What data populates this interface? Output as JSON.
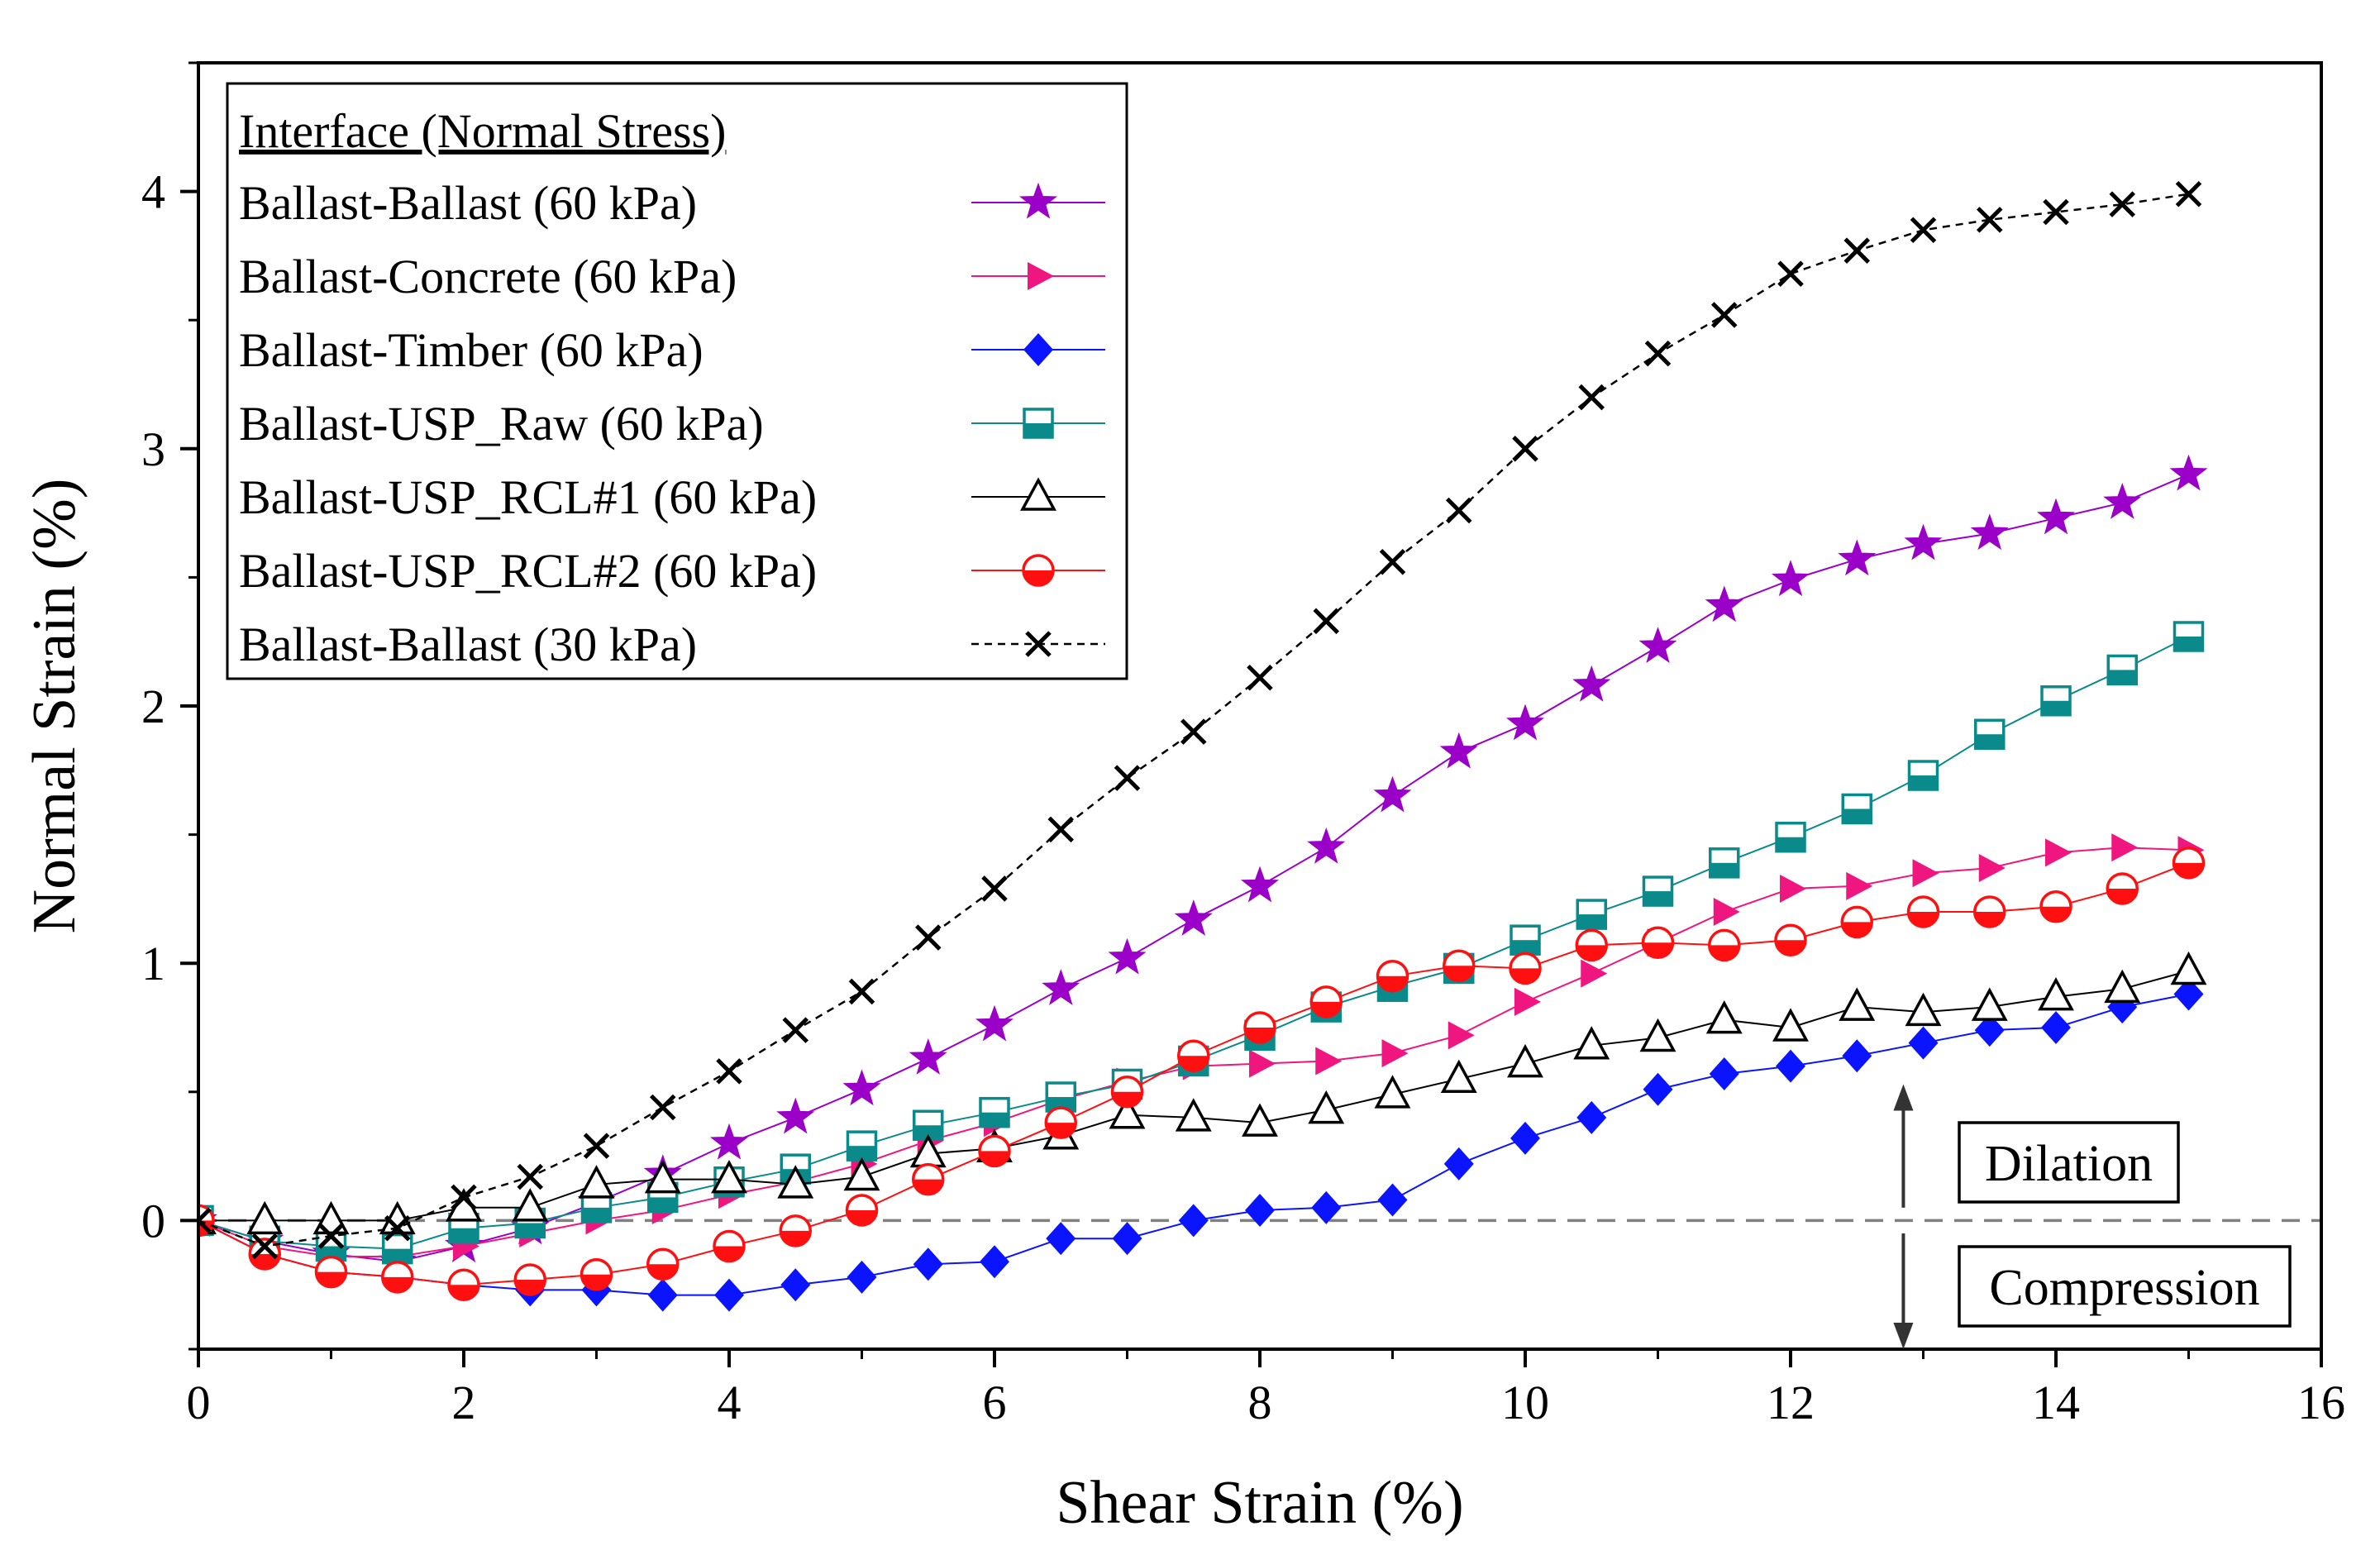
{
  "chart_data": {
    "type": "line",
    "title": "",
    "xlabel": "Shear Strain (%)",
    "ylabel": "Normal Strain (%)",
    "xlim": [
      0,
      16
    ],
    "ylim": [
      -0.5,
      4.5
    ],
    "xticks": [
      0,
      2,
      4,
      6,
      8,
      10,
      12,
      14,
      16
    ],
    "yticks": [
      0,
      1,
      2,
      3,
      4
    ],
    "x_tick_labels": [
      "0",
      "2",
      "4",
      "6",
      "8",
      "10",
      "12",
      "14",
      "16"
    ],
    "y_tick_labels": [
      "0",
      "1",
      "2",
      "3",
      "4"
    ],
    "legend_title": "Interface (Normal Stress)",
    "legend_position": "top-left",
    "x": [
      0,
      0.5,
      1,
      1.5,
      2,
      2.5,
      3,
      3.5,
      4,
      4.5,
      5,
      5.5,
      6,
      6.5,
      7,
      7.5,
      8,
      8.5,
      9,
      9.5,
      10,
      10.5,
      11,
      11.5,
      12,
      12.5,
      13,
      13.5,
      14,
      14.5,
      15
    ],
    "series": [
      {
        "name": "Ballast-Ballast (60 kPa)",
        "color": "#9b00c8",
        "marker": "star",
        "line": "solid",
        "values": [
          0,
          -0.08,
          -0.13,
          -0.16,
          -0.1,
          -0.03,
          0.07,
          0.18,
          0.3,
          0.4,
          0.51,
          0.63,
          0.76,
          0.9,
          1.02,
          1.17,
          1.3,
          1.45,
          1.65,
          1.82,
          1.93,
          2.08,
          2.23,
          2.39,
          2.49,
          2.57,
          2.63,
          2.67,
          2.73,
          2.79,
          2.9
        ]
      },
      {
        "name": "Ballast-Concrete (60 kPa)",
        "color": "#f0167f",
        "marker": "triangle-right",
        "line": "solid",
        "values": [
          0,
          -0.1,
          -0.14,
          -0.14,
          -0.1,
          -0.05,
          0,
          0.04,
          0.1,
          0.15,
          0.22,
          0.31,
          0.38,
          0.47,
          0.54,
          0.6,
          0.61,
          0.62,
          0.65,
          0.72,
          0.85,
          0.96,
          1.08,
          1.2,
          1.29,
          1.3,
          1.35,
          1.37,
          1.43,
          1.45,
          1.44
        ]
      },
      {
        "name": "Ballast-Timber (60 kPa)",
        "color": "#0a14ff",
        "marker": "diamond",
        "line": "solid",
        "values": [
          0,
          -0.13,
          -0.2,
          -0.22,
          -0.25,
          -0.27,
          -0.27,
          -0.29,
          -0.29,
          -0.25,
          -0.22,
          -0.17,
          -0.16,
          -0.07,
          -0.07,
          0,
          0.04,
          0.05,
          0.08,
          0.22,
          0.32,
          0.4,
          0.51,
          0.57,
          0.6,
          0.64,
          0.69,
          0.74,
          0.75,
          0.83,
          0.88
        ]
      },
      {
        "name": "Ballast-USP_Raw (60 kPa)",
        "color": "#0a8a8a",
        "marker": "square-half",
        "line": "solid",
        "values": [
          0,
          -0.08,
          -0.1,
          -0.11,
          -0.03,
          -0.01,
          0.05,
          0.09,
          0.15,
          0.2,
          0.29,
          0.37,
          0.42,
          0.48,
          0.53,
          0.62,
          0.72,
          0.83,
          0.91,
          0.98,
          1.09,
          1.19,
          1.28,
          1.39,
          1.49,
          1.6,
          1.73,
          1.89,
          2.02,
          2.14,
          2.27
        ]
      },
      {
        "name": "Ballast-USP_RCL#1 (60 kPa)",
        "color": "#000000",
        "marker": "triangle-up-open",
        "line": "solid",
        "values": [
          0,
          0,
          0,
          0,
          0.05,
          0.05,
          0.14,
          0.16,
          0.16,
          0.14,
          0.17,
          0.26,
          0.28,
          0.33,
          0.41,
          0.4,
          0.38,
          0.43,
          0.49,
          0.55,
          0.61,
          0.68,
          0.71,
          0.78,
          0.75,
          0.83,
          0.81,
          0.83,
          0.87,
          0.9,
          0.97
        ]
      },
      {
        "name": "Ballast-USP_RCL#2 (60 kPa)",
        "color": "#ff1010",
        "marker": "circle-half",
        "line": "solid",
        "values": [
          0,
          -0.13,
          -0.2,
          -0.22,
          -0.25,
          -0.23,
          -0.21,
          -0.17,
          -0.1,
          -0.04,
          0.04,
          0.16,
          0.27,
          0.38,
          0.5,
          0.64,
          0.75,
          0.85,
          0.95,
          0.99,
          0.98,
          1.07,
          1.08,
          1.07,
          1.09,
          1.16,
          1.2,
          1.2,
          1.22,
          1.29,
          1.39
        ]
      },
      {
        "name": "Ballast-Ballast (30 kPa)",
        "color": "#000000",
        "marker": "x",
        "line": "dashed",
        "values": [
          0,
          -0.1,
          -0.06,
          -0.03,
          0.09,
          0.17,
          0.29,
          0.44,
          0.58,
          0.74,
          0.89,
          1.1,
          1.29,
          1.52,
          1.72,
          1.9,
          2.11,
          2.33,
          2.56,
          2.76,
          3,
          3.2,
          3.37,
          3.52,
          3.68,
          3.77,
          3.85,
          3.89,
          3.92,
          3.95,
          3.99
        ]
      }
    ],
    "reference_line": {
      "y": 0,
      "style": "dashed",
      "color": "#808080"
    },
    "annotations": [
      {
        "text": "Dilation",
        "arrow": "up",
        "x": 12.85,
        "y_from": 0.05,
        "y_to": 0.53
      },
      {
        "text": "Compression",
        "arrow": "down",
        "x": 12.85,
        "y_from": -0.05,
        "y_to": -0.5
      }
    ]
  }
}
